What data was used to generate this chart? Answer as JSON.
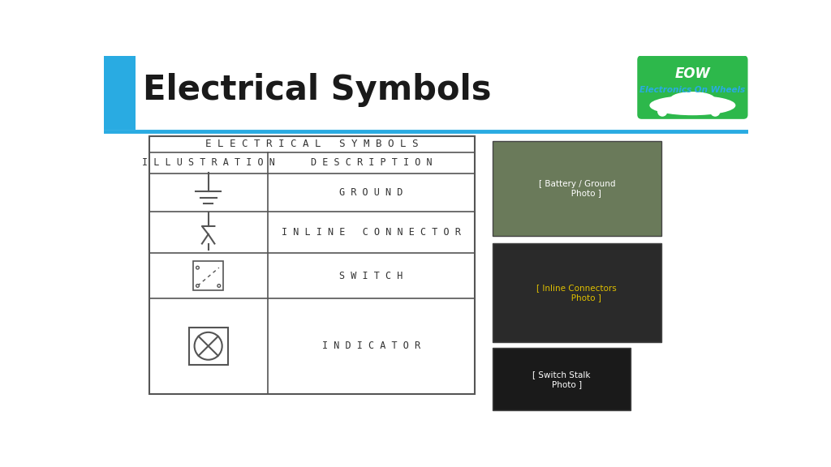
{
  "title": "Electrical Symbols",
  "title_fontsize": 30,
  "title_fontweight": "bold",
  "bg_color": "#ffffff",
  "header_bar_color": "#29abe2",
  "table_title": "E L E C T R I C A L   S Y M B O L S",
  "col1_header": "I L L U S T R A T I O N",
  "col2_header": "D E S C R I P T I O N",
  "rows": [
    "G R O U N D",
    "I N L I N E   C O N N E C T O R",
    "S W I T C H",
    "I N D I C A T O R"
  ],
  "table_font": "monospace",
  "table_fontsize": 9,
  "eow_bg": "#2db84b",
  "eow_text1": "EOW",
  "eow_text2": "Electronics On Wheels",
  "line_color": "#555555",
  "cyan_bar_color": "#29abe2",
  "separator_color": "#29abe2"
}
